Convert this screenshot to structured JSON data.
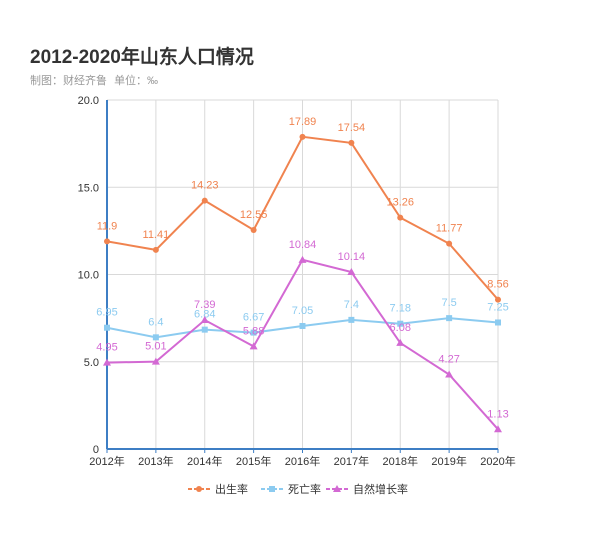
{
  "header": {
    "title": "2012-2020年山东人口情况",
    "source": "制图：财经齐鲁",
    "unit": "单位：‰"
  },
  "chart_data": {
    "type": "line",
    "categories": [
      "2012年",
      "2013年",
      "2014年",
      "2015年",
      "2016年",
      "2017年",
      "2018年",
      "2019年",
      "2020年"
    ],
    "ylim": [
      0,
      20
    ],
    "yticks": [
      "0",
      "5.0",
      "10.0",
      "15.0",
      "20.0"
    ],
    "grid": true,
    "legend_position": "bottom",
    "series": [
      {
        "name": "出生率",
        "color": "#f0834f",
        "marker": "circle",
        "values": [
          11.9,
          11.41,
          14.23,
          12.55,
          17.89,
          17.54,
          13.26,
          11.77,
          8.56
        ]
      },
      {
        "name": "死亡率",
        "color": "#8ccbf0",
        "marker": "square",
        "values": [
          6.95,
          6.4,
          6.84,
          6.67,
          7.05,
          7.4,
          7.18,
          7.5,
          7.25
        ]
      },
      {
        "name": "自然增长率",
        "color": "#d369d3",
        "marker": "triangle",
        "values": [
          4.95,
          5.01,
          7.39,
          5.88,
          10.84,
          10.14,
          6.08,
          4.27,
          1.13
        ]
      }
    ]
  }
}
